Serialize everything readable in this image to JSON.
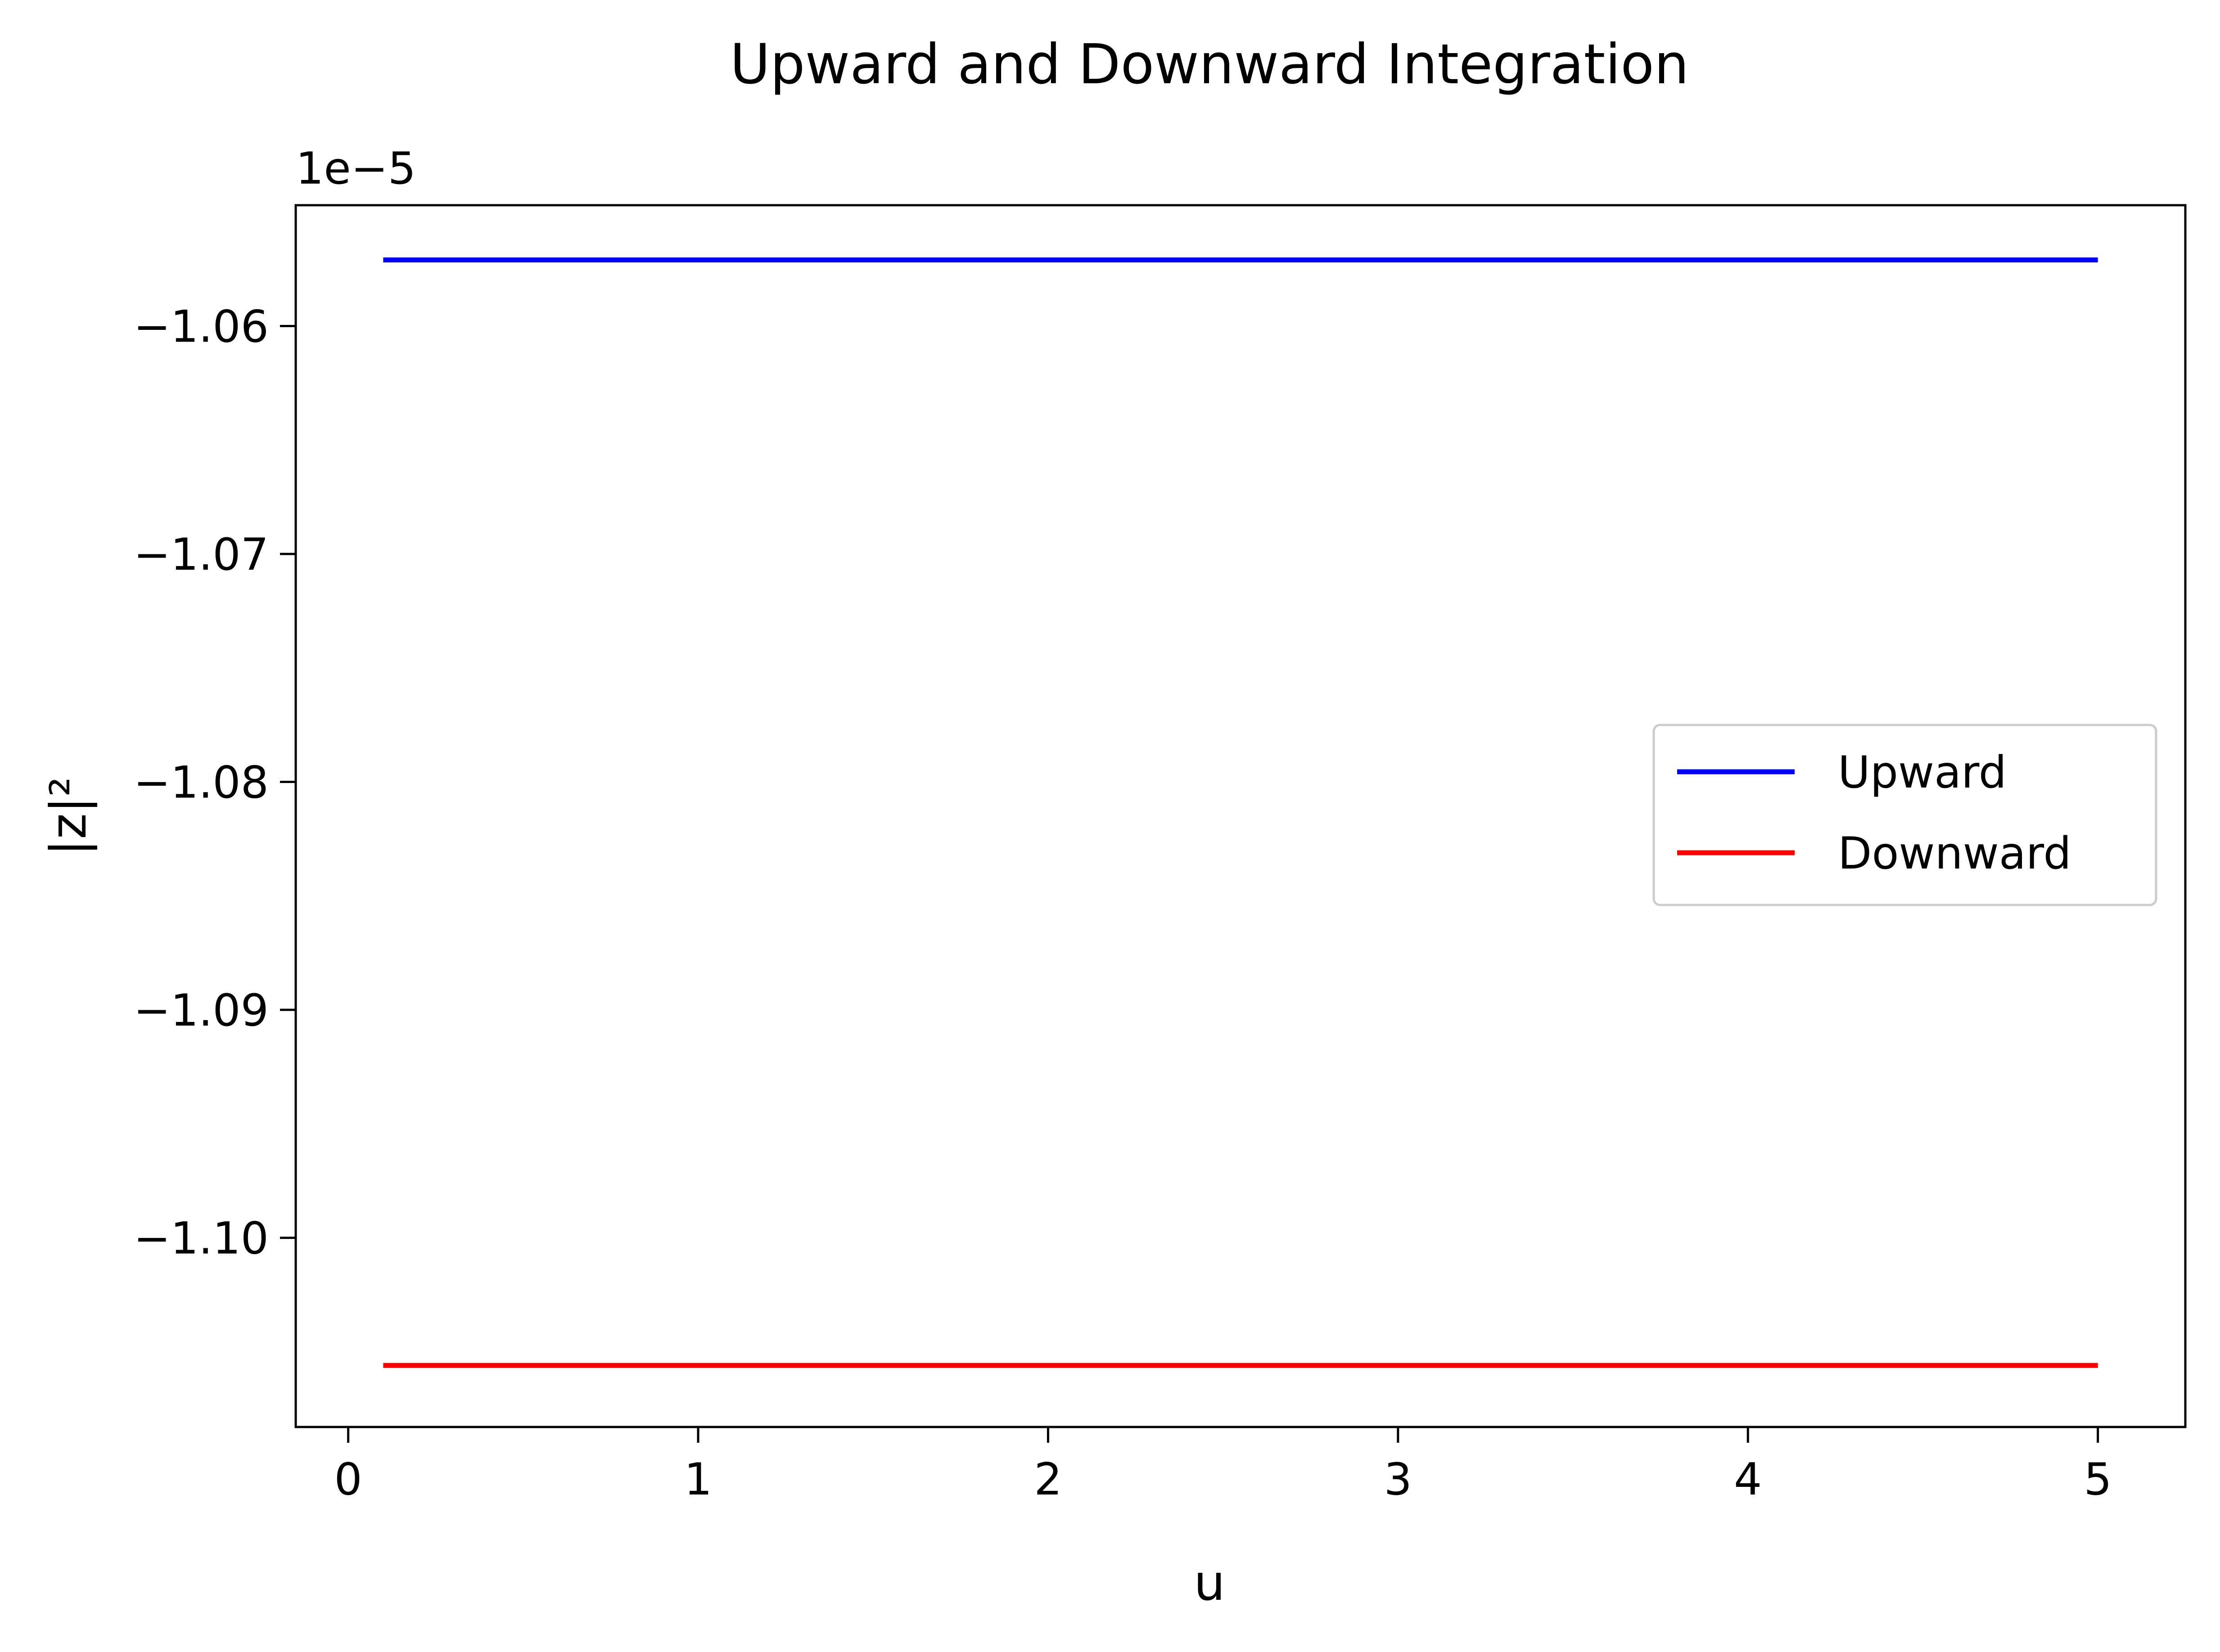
{
  "chart_data": {
    "type": "line",
    "title": "Upward and Downward Integration",
    "xlabel": "u",
    "ylabel": "|z|²",
    "y_offset_label": "1e−5",
    "xlim": [
      -0.15,
      5.25
    ],
    "ylim": [
      -11.083,
      -10.547
    ],
    "y_scale_factor": "1e-5",
    "x_ticks": [
      0,
      1,
      2,
      3,
      4,
      5
    ],
    "x_tick_labels": [
      "0",
      "1",
      "2",
      "3",
      "4",
      "5"
    ],
    "y_ticks": [
      -10.6,
      -10.7,
      -10.8,
      -10.9,
      -11.0
    ],
    "y_tick_labels": [
      "−1.06",
      "−1.07",
      "−1.08",
      "−1.09",
      "−1.10"
    ],
    "grid": false,
    "legend_position": "center-right",
    "series": [
      {
        "name": "Upward",
        "color": "#0000ff",
        "x": [
          0.1,
          5.0
        ],
        "y": [
          -10.571,
          -10.571
        ]
      },
      {
        "name": "Downward",
        "color": "#ff0000",
        "x": [
          0.1,
          5.0
        ],
        "y": [
          -11.056,
          -11.056
        ]
      }
    ]
  }
}
